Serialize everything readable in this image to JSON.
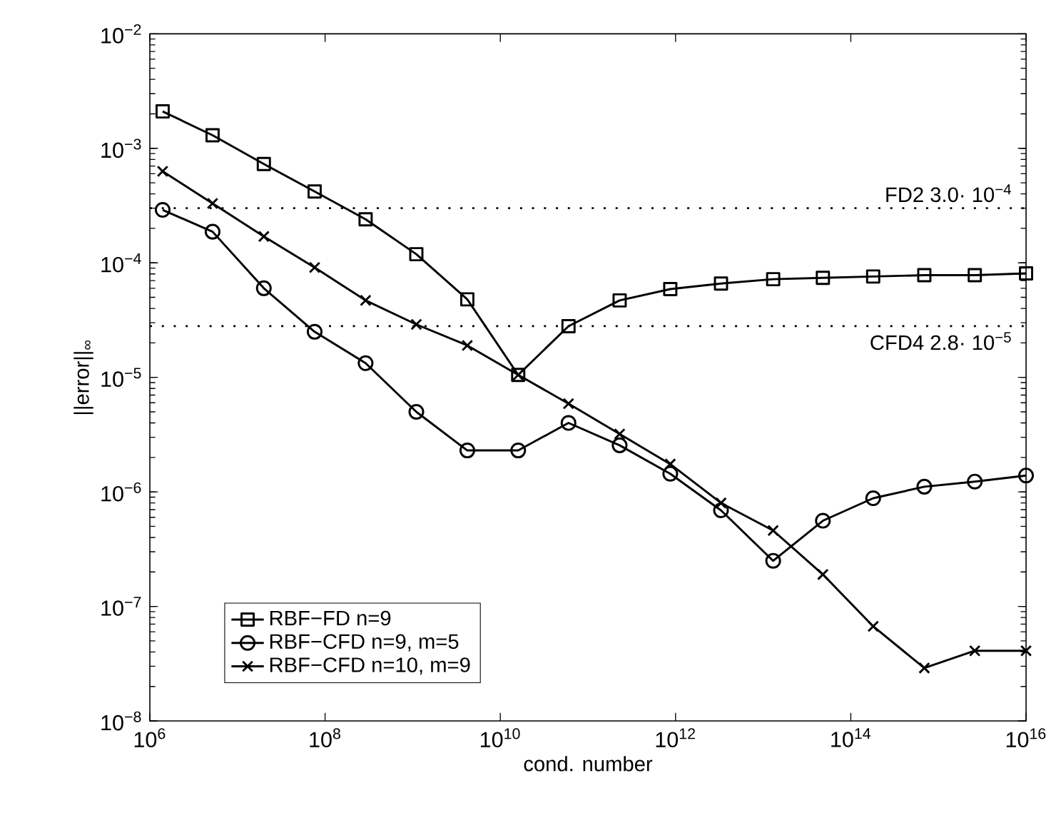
{
  "chart_data": {
    "type": "line",
    "xlabel": "cond. number",
    "ylabel": "||error||$_{∞}$",
    "log": "xy",
    "grid": false,
    "legend": "bottom left",
    "line_style": "solid",
    "xlim": [
      1000000.0,
      1e+16
    ],
    "ylim": [
      1e-08,
      0.01
    ],
    "xticks": [
      {
        "value": 1000000.0,
        "label": "10$^{6}$"
      },
      {
        "value": 100000000.0,
        "label": "10$^{8}$"
      },
      {
        "value": 10000000000.0,
        "label": "10$^{10}$"
      },
      {
        "value": 1000000000000.0,
        "label": "10$^{12}$"
      },
      {
        "value": 100000000000000.0,
        "label": "10$^{14}$"
      },
      {
        "value": 1e+16,
        "label": "10$^{16}$"
      }
    ],
    "yticks": [
      {
        "value": 1e-08,
        "label": "10$^{−8}$"
      },
      {
        "value": 1e-07,
        "label": "10$^{−7}$"
      },
      {
        "value": 1e-06,
        "label": "10$^{−6}$"
      },
      {
        "value": 1e-05,
        "label": "10$^{−5}$"
      },
      {
        "value": 0.0001,
        "label": "10$^{−4}$"
      },
      {
        "value": 0.001,
        "label": "10$^{−3}$"
      },
      {
        "value": 0.01,
        "label": "10$^{−2}$"
      }
    ],
    "x": [
      1400000.0,
      5200000.0,
      20000000.0,
      76000000.0,
      290000000.0,
      1100000000.0,
      4200000000.0,
      16000000000.0,
      60000000000.0,
      230000000000.0,
      870000000000.0,
      3300000000000.0,
      13000000000000.0,
      48000000000000.0,
      180000000000000.0,
      690000000000000.0,
      2600000000000000.0,
      1e+16
    ],
    "series": [
      {
        "name": "RBF−FD n=9",
        "color": "#000000",
        "marker": "square",
        "values": [
          0.0021,
          0.0013,
          0.00073,
          0.00042,
          0.00024,
          0.000119,
          4.8e-05,
          1.05e-05,
          2.8e-05,
          4.7e-05,
          5.9e-05,
          6.6e-05,
          7.2e-05,
          7.4e-05,
          7.6e-05,
          7.8e-05,
          7.8e-05,
          8.1e-05
        ]
      },
      {
        "name": "RBF−CFD n=9, m=5",
        "color": "#000000",
        "marker": "circle",
        "values": [
          0.00029,
          0.000187,
          6e-05,
          2.5e-05,
          1.33e-05,
          5e-06,
          2.3e-06,
          2.3e-06,
          4e-06,
          2.55e-06,
          1.44e-06,
          6.9e-07,
          2.5e-07,
          5.6e-07,
          8.8e-07,
          1.11e-06,
          1.23e-06,
          1.39e-06
        ]
      },
      {
        "name": "RBF−CFD n=10, m=9",
        "color": "#000000",
        "marker": "cross",
        "values": [
          0.00063,
          0.00033,
          0.00017,
          9.1e-05,
          4.7e-05,
          2.9e-05,
          1.9e-05,
          1.05e-05,
          5.9e-06,
          3.2e-06,
          1.75e-06,
          8e-07,
          4.6e-07,
          1.9e-07,
          6.7e-08,
          2.9e-08,
          4.1e-08,
          4.1e-08
        ]
      }
    ],
    "ref_lines": [
      {
        "axis": "y",
        "value": 0.0003,
        "label": "FD2 3.0· 10$^{−4}$",
        "color": "#000000",
        "line_style": "dotted"
      },
      {
        "axis": "y",
        "value": 2.8e-05,
        "label": "CFD4 2.8· 10$^{−5}$",
        "color": "#000000",
        "line_style": "dotted"
      }
    ]
  }
}
